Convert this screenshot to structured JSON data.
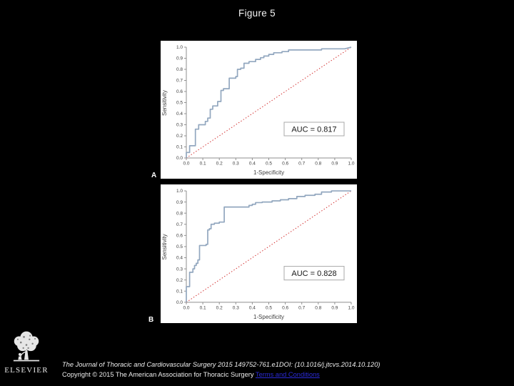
{
  "figure_title": "Figure 5",
  "colors": {
    "background": "#000000",
    "panel_background": "#ffffff",
    "roc_curve": "#92a7bf",
    "diagonal_reference": "#d22b2b",
    "axis": "#8f8f8f",
    "tick_text": "#3d3d3d",
    "annotation_text": "#161616",
    "annotation_border": "#a8a8a8",
    "link": "#2b2bd8"
  },
  "chart_data": [
    {
      "type": "line",
      "variant": "roc-step-curve",
      "panel_label": "A",
      "xlabel": "1-Specificity",
      "ylabel": "Sensitivity",
      "xlim": [
        0,
        1
      ],
      "ylim": [
        0,
        1
      ],
      "grid": false,
      "legend": "none",
      "xticks": [
        "0.0",
        "0.1",
        "0.2",
        "0.3",
        "0.4",
        "0.5",
        "0.6",
        "0.7",
        "0.8",
        "0.9",
        "1.0"
      ],
      "yticks": [
        "0.0",
        "0.1",
        "0.2",
        "0.3",
        "0.4",
        "0.5",
        "0.6",
        "0.7",
        "0.8",
        "0.9",
        "1.0"
      ],
      "annotation": "AUC = 0.817",
      "auc": 0.817,
      "reference_line": [
        [
          0,
          0
        ],
        [
          1,
          1
        ]
      ],
      "points": [
        [
          0,
          0
        ],
        [
          0,
          0.05
        ],
        [
          0.02,
          0.05
        ],
        [
          0.02,
          0.11
        ],
        [
          0.055,
          0.11
        ],
        [
          0.055,
          0.26
        ],
        [
          0.075,
          0.26
        ],
        [
          0.075,
          0.3
        ],
        [
          0.115,
          0.3
        ],
        [
          0.115,
          0.33
        ],
        [
          0.13,
          0.33
        ],
        [
          0.13,
          0.36
        ],
        [
          0.145,
          0.36
        ],
        [
          0.145,
          0.44
        ],
        [
          0.16,
          0.44
        ],
        [
          0.16,
          0.47
        ],
        [
          0.19,
          0.47
        ],
        [
          0.19,
          0.51
        ],
        [
          0.21,
          0.51
        ],
        [
          0.21,
          0.61
        ],
        [
          0.225,
          0.61
        ],
        [
          0.225,
          0.625
        ],
        [
          0.26,
          0.625
        ],
        [
          0.26,
          0.72
        ],
        [
          0.3,
          0.72
        ],
        [
          0.3,
          0.735
        ],
        [
          0.31,
          0.735
        ],
        [
          0.31,
          0.8
        ],
        [
          0.33,
          0.8
        ],
        [
          0.33,
          0.81
        ],
        [
          0.35,
          0.81
        ],
        [
          0.35,
          0.855
        ],
        [
          0.38,
          0.855
        ],
        [
          0.38,
          0.87
        ],
        [
          0.42,
          0.87
        ],
        [
          0.42,
          0.89
        ],
        [
          0.45,
          0.89
        ],
        [
          0.45,
          0.905
        ],
        [
          0.47,
          0.905
        ],
        [
          0.47,
          0.92
        ],
        [
          0.5,
          0.92
        ],
        [
          0.5,
          0.935
        ],
        [
          0.53,
          0.935
        ],
        [
          0.53,
          0.95
        ],
        [
          0.58,
          0.95
        ],
        [
          0.58,
          0.96
        ],
        [
          0.62,
          0.96
        ],
        [
          0.62,
          0.975
        ],
        [
          0.82,
          0.975
        ],
        [
          0.82,
          0.985
        ],
        [
          0.96,
          0.985
        ],
        [
          1.0,
          1.0
        ]
      ]
    },
    {
      "type": "line",
      "variant": "roc-step-curve",
      "panel_label": "B",
      "xlabel": "1-Specificity",
      "ylabel": "Sensitivity",
      "xlim": [
        0,
        1
      ],
      "ylim": [
        0,
        1
      ],
      "grid": false,
      "legend": "none",
      "xticks": [
        "0.0",
        "0.1",
        "0.2",
        "0.3",
        "0.4",
        "0.5",
        "0.6",
        "0.7",
        "0.8",
        "0.9",
        "1.0"
      ],
      "yticks": [
        "0.0",
        "0.1",
        "0.2",
        "0.3",
        "0.4",
        "0.5",
        "0.6",
        "0.7",
        "0.8",
        "0.9",
        "1.0"
      ],
      "annotation": "AUC = 0.828",
      "auc": 0.828,
      "reference_line": [
        [
          0,
          0
        ],
        [
          1,
          1
        ]
      ],
      "points": [
        [
          0,
          0
        ],
        [
          0,
          0.14
        ],
        [
          0.02,
          0.14
        ],
        [
          0.02,
          0.27
        ],
        [
          0.04,
          0.27
        ],
        [
          0.04,
          0.3
        ],
        [
          0.05,
          0.3
        ],
        [
          0.05,
          0.33
        ],
        [
          0.06,
          0.33
        ],
        [
          0.06,
          0.35
        ],
        [
          0.07,
          0.35
        ],
        [
          0.07,
          0.38
        ],
        [
          0.08,
          0.38
        ],
        [
          0.08,
          0.51
        ],
        [
          0.12,
          0.51
        ],
        [
          0.12,
          0.52
        ],
        [
          0.13,
          0.52
        ],
        [
          0.13,
          0.65
        ],
        [
          0.14,
          0.65
        ],
        [
          0.14,
          0.66
        ],
        [
          0.15,
          0.66
        ],
        [
          0.15,
          0.7
        ],
        [
          0.17,
          0.7
        ],
        [
          0.17,
          0.71
        ],
        [
          0.2,
          0.71
        ],
        [
          0.2,
          0.72
        ],
        [
          0.23,
          0.72
        ],
        [
          0.23,
          0.855
        ],
        [
          0.38,
          0.855
        ],
        [
          0.38,
          0.87
        ],
        [
          0.4,
          0.87
        ],
        [
          0.4,
          0.88
        ],
        [
          0.42,
          0.88
        ],
        [
          0.42,
          0.895
        ],
        [
          0.46,
          0.895
        ],
        [
          0.46,
          0.9
        ],
        [
          0.52,
          0.9
        ],
        [
          0.52,
          0.91
        ],
        [
          0.57,
          0.91
        ],
        [
          0.57,
          0.92
        ],
        [
          0.62,
          0.92
        ],
        [
          0.62,
          0.93
        ],
        [
          0.67,
          0.93
        ],
        [
          0.67,
          0.95
        ],
        [
          0.72,
          0.95
        ],
        [
          0.72,
          0.96
        ],
        [
          0.78,
          0.96
        ],
        [
          0.78,
          0.97
        ],
        [
          0.82,
          0.97
        ],
        [
          0.82,
          0.99
        ],
        [
          0.88,
          0.99
        ],
        [
          0.88,
          1.0
        ],
        [
          1.0,
          1.0
        ]
      ]
    }
  ],
  "footer": {
    "citation_journal": "The Journal of Thoracic and Cardiovascular Surgery",
    "citation_rest": " 2015 149752-761.e1DOI: (10.1016/j.jtcvs.2014.10.120)",
    "copyright_text": "Copyright © 2015 The American Association for Thoracic Surgery ",
    "terms_link_label": "Terms and Conditions"
  },
  "logo": {
    "wordmark": "ELSEVIER",
    "icon": "elsevier-tree"
  }
}
